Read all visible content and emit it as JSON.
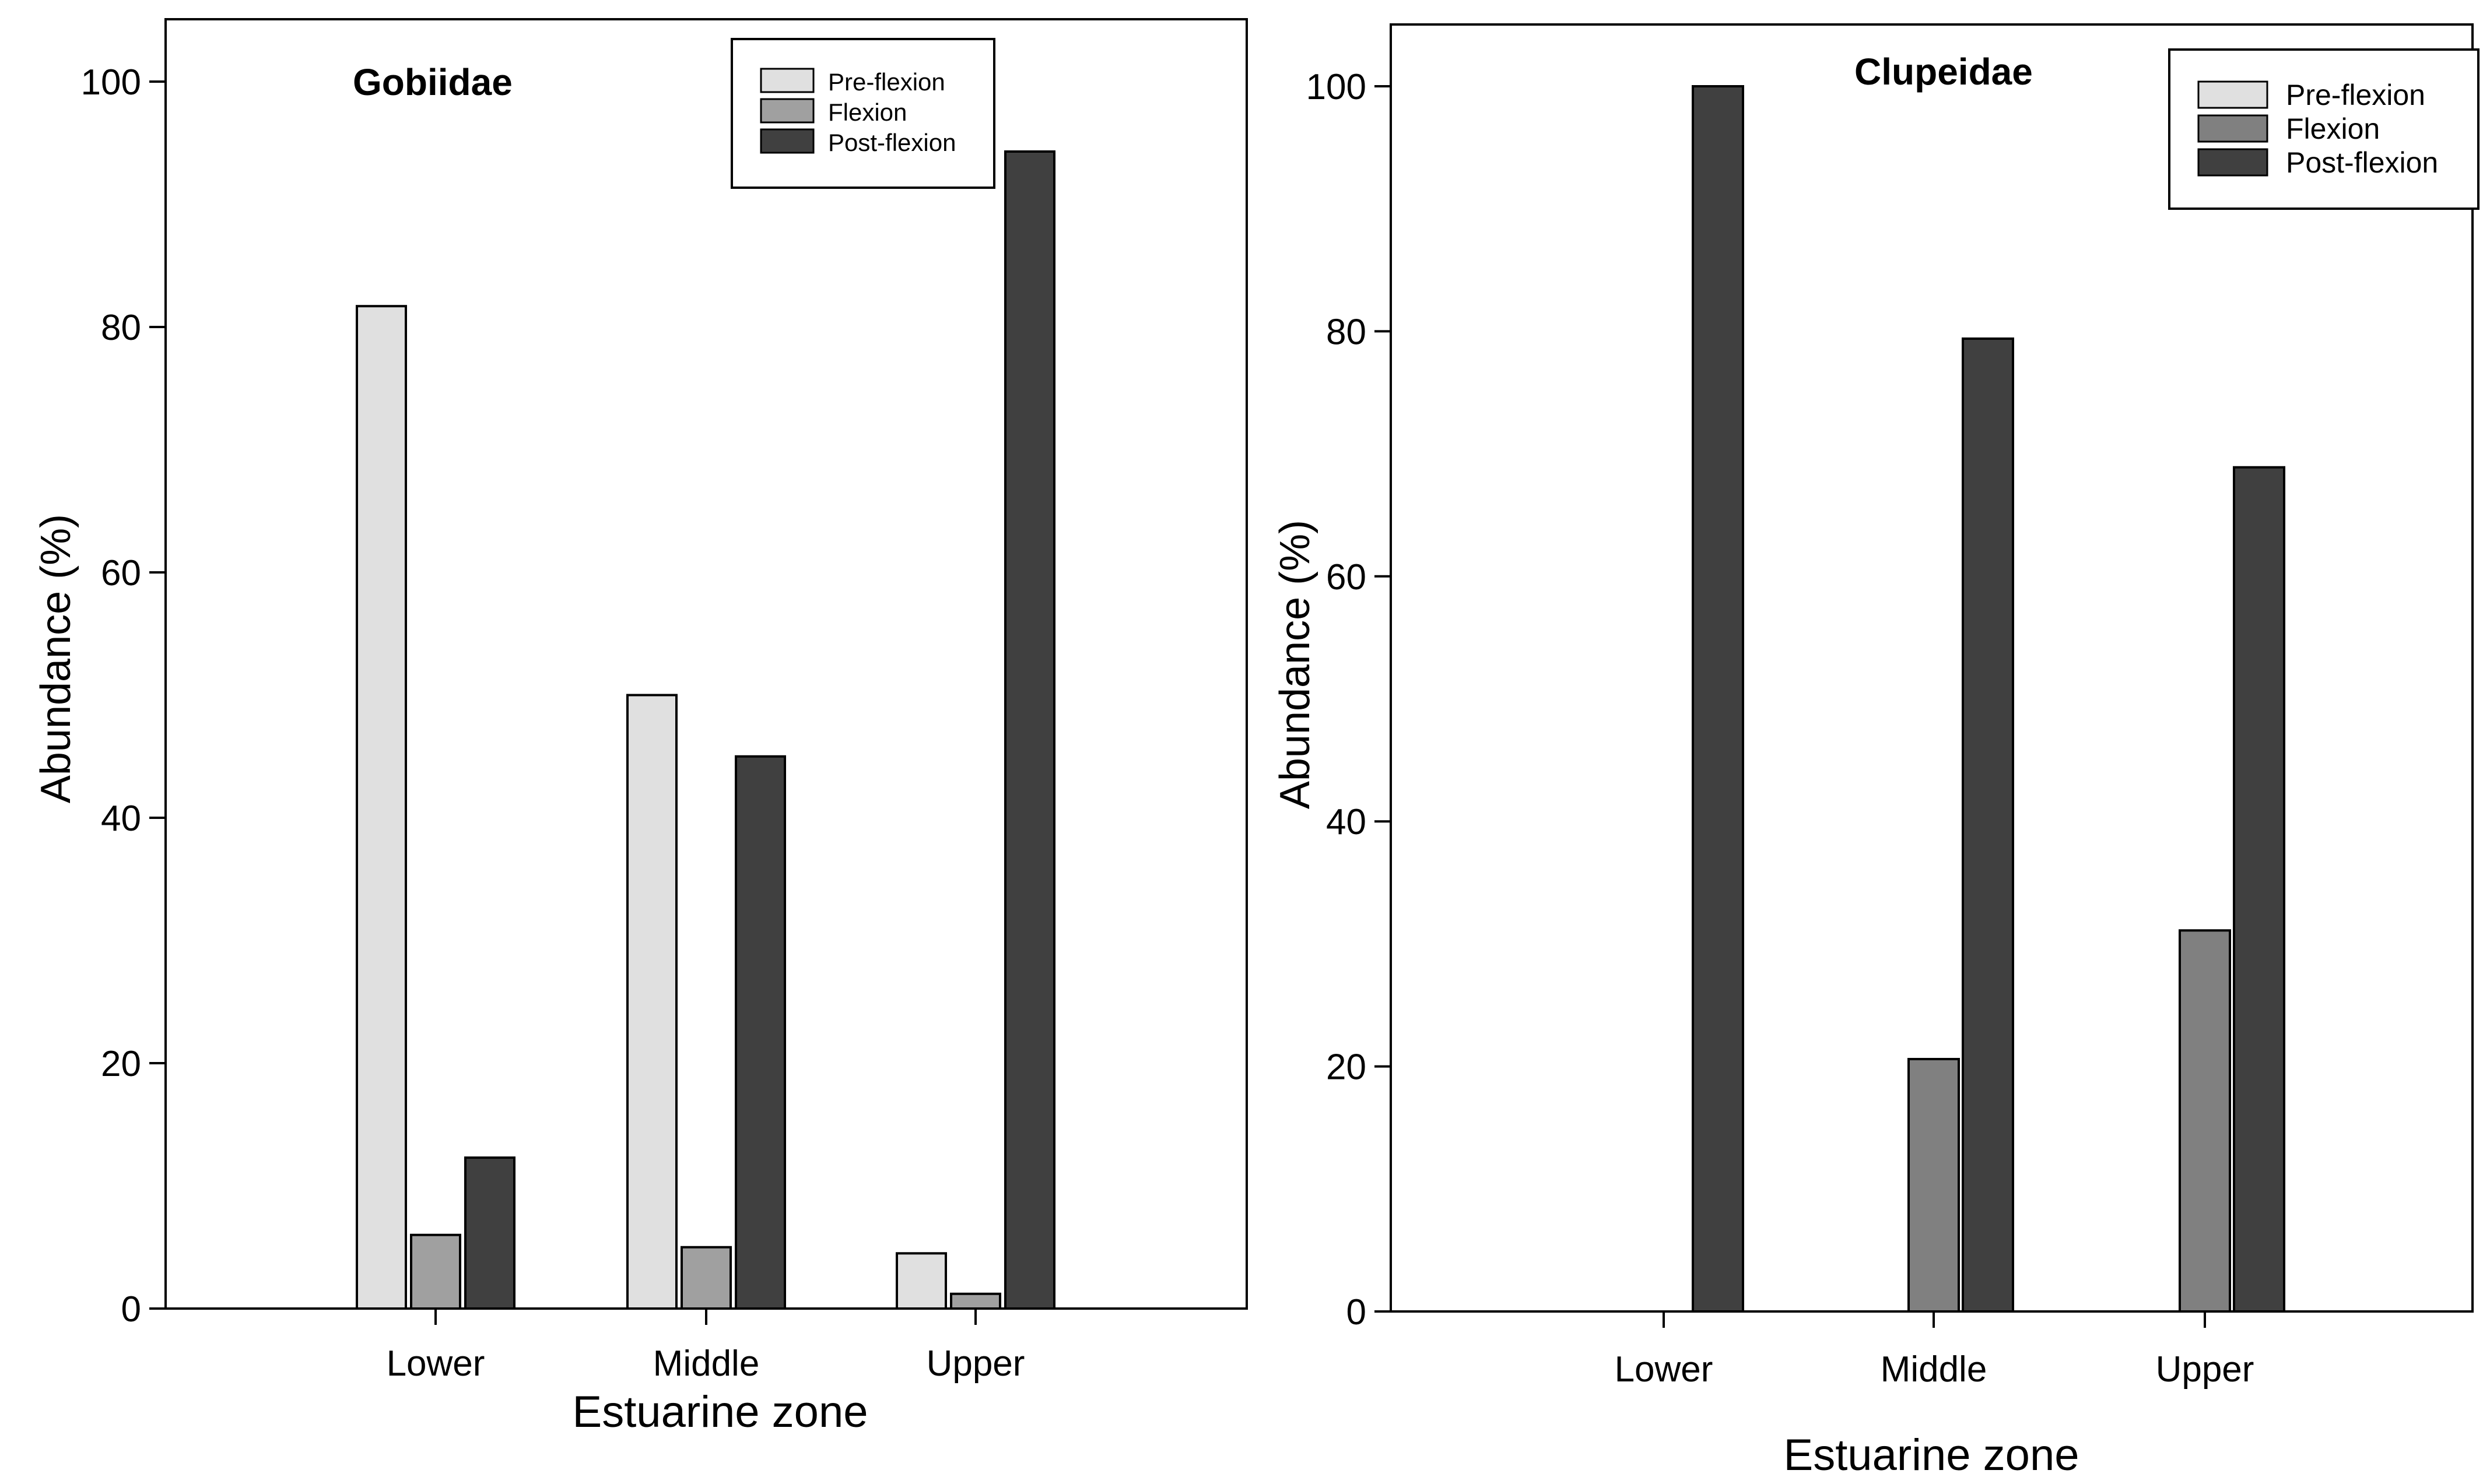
{
  "chart_data": [
    {
      "type": "bar",
      "title": "Gobiidae",
      "xlabel": "Estuarine zone",
      "ylabel": "Abundance (%)",
      "ylim": [
        0,
        100
      ],
      "yticks": [
        "0",
        "20",
        "40",
        "60",
        "80",
        "100"
      ],
      "categories": [
        "Lower",
        "Middle",
        "Upper"
      ],
      "legend_position": "top-right",
      "series": [
        {
          "name": "Pre-flexion",
          "color": "#e0e0e0",
          "values": [
            81.7,
            50.0,
            4.5
          ]
        },
        {
          "name": "Flexion",
          "color": "#a0a0a0",
          "values": [
            6.0,
            5.0,
            1.2
          ]
        },
        {
          "name": "Post-flexion",
          "color": "#404040",
          "values": [
            12.3,
            45.0,
            94.3
          ]
        }
      ]
    },
    {
      "type": "bar",
      "title": "Clupeidae",
      "xlabel": "Estuarine zone",
      "ylabel": "Abundance (%)",
      "ylim": [
        0,
        100
      ],
      "yticks": [
        "0",
        "20",
        "40",
        "60",
        "80",
        "100"
      ],
      "categories": [
        "Lower",
        "Middle",
        "Upper"
      ],
      "legend_position": "top-right",
      "series": [
        {
          "name": "Pre-flexion",
          "color": "#e0e0e0",
          "values": [
            0,
            0,
            0
          ]
        },
        {
          "name": "Flexion",
          "color": "#808080",
          "values": [
            0,
            20.6,
            31.1
          ]
        },
        {
          "name": "Post-flexion",
          "color": "#404040",
          "values": [
            100.0,
            79.4,
            68.9
          ]
        }
      ]
    }
  ]
}
